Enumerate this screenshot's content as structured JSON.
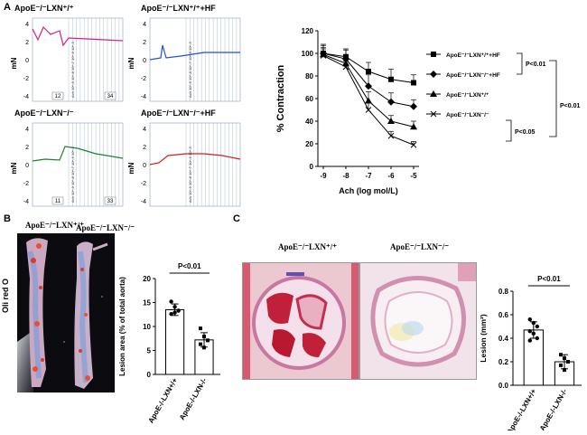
{
  "panel_labels": {
    "a": "A",
    "b": "B",
    "c": "C"
  },
  "traces": [
    {
      "title": "ApoE⁻/⁻LXN⁺/⁺",
      "color": "#d0208a",
      "yticks": [
        "4",
        "2",
        "0",
        "-2",
        "-4"
      ],
      "ylabel": "mN",
      "box_left": "12",
      "box_right": "34",
      "annot": "Ach 10^-9 10^-8 10^-7 10^-6 10^-5"
    },
    {
      "title": "ApoE⁻/⁻LXN⁺/⁺+HF",
      "color": "#2050d0",
      "yticks": [
        "4",
        "2",
        "0",
        "-2",
        "-4"
      ],
      "ylabel": "mN",
      "box_left": "",
      "box_right": "",
      "annot": "Ach 10^-9 10^-8 10^-7 10^-6 10^-5"
    },
    {
      "title": "ApoE⁻/⁻LXN⁻/⁻",
      "color": "#208030",
      "yticks": [
        "4",
        "2",
        "0",
        "-2",
        "-4"
      ],
      "ylabel": "mN",
      "box_left": "11",
      "box_right": "33",
      "annot": "Ach 10^-9 10^-8 10^-7 10^-6 10^-5"
    },
    {
      "title": "ApoE⁻/⁻LXN⁻/⁻+HF",
      "color": "#d02020",
      "yticks": [
        "4",
        "2",
        "0",
        "-2",
        "-4"
      ],
      "ylabel": "mN",
      "box_left": "",
      "box_right": "",
      "annot": "Ach 10^-9 10^-8 10^-7 10^-6 10^-5"
    }
  ],
  "chart_data": [
    {
      "type": "line",
      "xlabel": "Ach (log mol/L)",
      "ylabel": "% Contraction",
      "x": [
        -9,
        -8,
        -7,
        -6,
        -5
      ],
      "xticks": [
        "-9",
        "-8",
        "-7",
        "-6",
        "-5"
      ],
      "yticks": [
        "0",
        "20",
        "40",
        "60",
        "80",
        "100",
        "120"
      ],
      "ylim": [
        0,
        120
      ],
      "series": [
        {
          "name": "ApoE⁻/⁻LXN⁺/⁺+HF",
          "marker": "square",
          "values": [
            100,
            97,
            84,
            77,
            74
          ],
          "err": [
            8,
            7,
            8,
            9,
            7
          ]
        },
        {
          "name": "ApoE⁻/⁻LXN⁻/⁻+HF",
          "marker": "diamond",
          "values": [
            100,
            95,
            71,
            57,
            53
          ],
          "err": [
            7,
            8,
            10,
            8,
            6
          ]
        },
        {
          "name": "ApoE⁻/⁻LXN⁺/⁺",
          "marker": "triangle",
          "values": [
            99,
            91,
            58,
            40,
            35
          ],
          "err": [
            6,
            6,
            8,
            5,
            5
          ]
        },
        {
          "name": "ApoE⁻/⁻LXN⁻/⁻",
          "marker": "x",
          "values": [
            98,
            88,
            50,
            27,
            19
          ],
          "err": [
            6,
            5,
            6,
            4,
            3
          ]
        }
      ],
      "annotations": [
        "P<0.01",
        "P<0.01",
        "P<0.05"
      ]
    },
    {
      "type": "bar",
      "ylabel": "Lesion area (% of total aorta)",
      "categories": [
        "ApoE-/-LXN+/+",
        "ApoE-/-LXN-/-"
      ],
      "values": [
        13.5,
        7.2
      ],
      "err": [
        1.2,
        1.5
      ],
      "points": [
        [
          15.2,
          14.1,
          13.3,
          12.6,
          12.9
        ],
        [
          9.6,
          7.9,
          7.1,
          6.3,
          5.6
        ]
      ],
      "ylim": [
        0,
        20
      ],
      "yticks": [
        "0",
        "5",
        "10",
        "15",
        "20"
      ],
      "annotation": "P<0.01"
    },
    {
      "type": "bar",
      "ylabel": "Lesion (mm²)",
      "categories": [
        "ApoE-/-LXN+/+",
        "ApoE-/-LXN-/-"
      ],
      "values": [
        0.47,
        0.2
      ],
      "err": [
        0.07,
        0.06
      ],
      "points": [
        [
          0.56,
          0.53,
          0.5,
          0.46,
          0.44,
          0.4,
          0.38
        ],
        [
          0.26,
          0.23,
          0.2,
          0.17,
          0.13
        ]
      ],
      "ylim": [
        0,
        0.8
      ],
      "yticks": [
        "0.0",
        "0.2",
        "0.4",
        "0.6",
        "0.8"
      ],
      "annotation": "P<0.01"
    }
  ],
  "panel_b": {
    "left_title": "ApoE⁻/⁻LXN⁺/⁺",
    "right_title": "ApoE⁻/⁻LXN⁻/⁻",
    "stain": "Oli red O"
  },
  "panel_c": {
    "left_title": "ApoE⁻/⁻LXN⁺/⁺",
    "right_title": "ApoE⁻/⁻LXN⁻/⁻"
  },
  "colors": {
    "axis": "#000000",
    "grid": "#9ab0c8"
  }
}
